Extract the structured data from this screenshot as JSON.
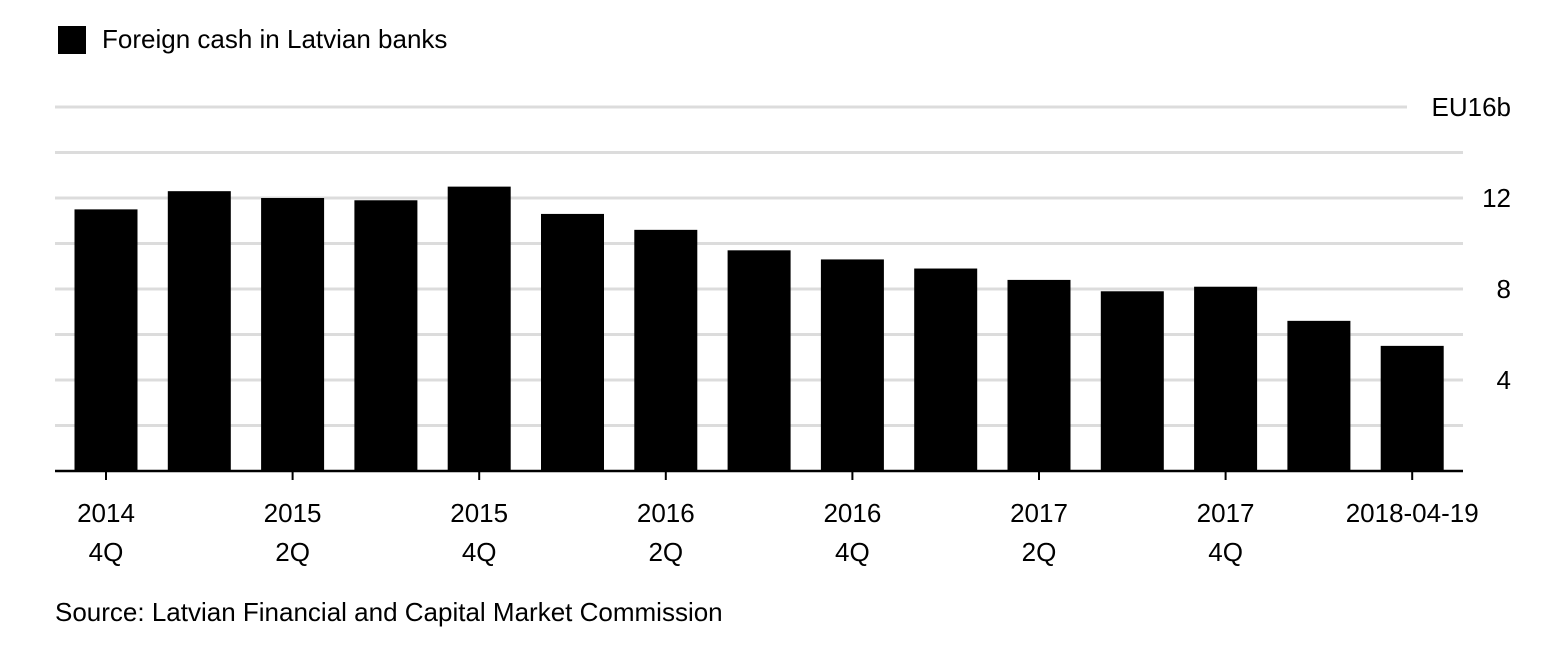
{
  "legend": {
    "label": "Foreign cash in Latvian banks",
    "color": "#000000"
  },
  "source": "Source: Latvian Financial and Capital Market Commission",
  "chart_data": {
    "type": "bar",
    "series": [
      {
        "name": "Foreign cash in Latvian banks",
        "color": "#000000",
        "values": [
          11.5,
          12.3,
          12.0,
          11.9,
          12.5,
          11.3,
          10.6,
          9.7,
          9.3,
          8.9,
          8.4,
          7.9,
          8.1,
          6.6,
          5.5
        ]
      }
    ],
    "categories": [
      "2014 4Q",
      "",
      "2015 2Q",
      "",
      "2015 4Q",
      "",
      "2016 2Q",
      "",
      "2016 4Q",
      "",
      "2017 2Q",
      "",
      "2017 4Q",
      "",
      "2018-04-19"
    ],
    "x_tick_labels": [
      {
        "index": 0,
        "line1": "2014",
        "line2": "4Q"
      },
      {
        "index": 2,
        "line1": "2015",
        "line2": "2Q"
      },
      {
        "index": 4,
        "line1": "2015",
        "line2": "4Q"
      },
      {
        "index": 6,
        "line1": "2016",
        "line2": "2Q"
      },
      {
        "index": 8,
        "line1": "2016",
        "line2": "4Q"
      },
      {
        "index": 10,
        "line1": "2017",
        "line2": "2Q"
      },
      {
        "index": 12,
        "line1": "2017",
        "line2": "4Q"
      },
      {
        "index": 14,
        "line1": "2018-04-19",
        "line2": ""
      }
    ],
    "y_ticks": [
      {
        "value": 4,
        "label": "4"
      },
      {
        "value": 8,
        "label": "8"
      },
      {
        "value": 12,
        "label": "12"
      },
      {
        "value": 16,
        "label": "EU16b"
      }
    ],
    "ylim": [
      0,
      16
    ],
    "grid": true,
    "gridline_step": 2,
    "legend_position": "top-left",
    "y_axis_side": "right"
  }
}
